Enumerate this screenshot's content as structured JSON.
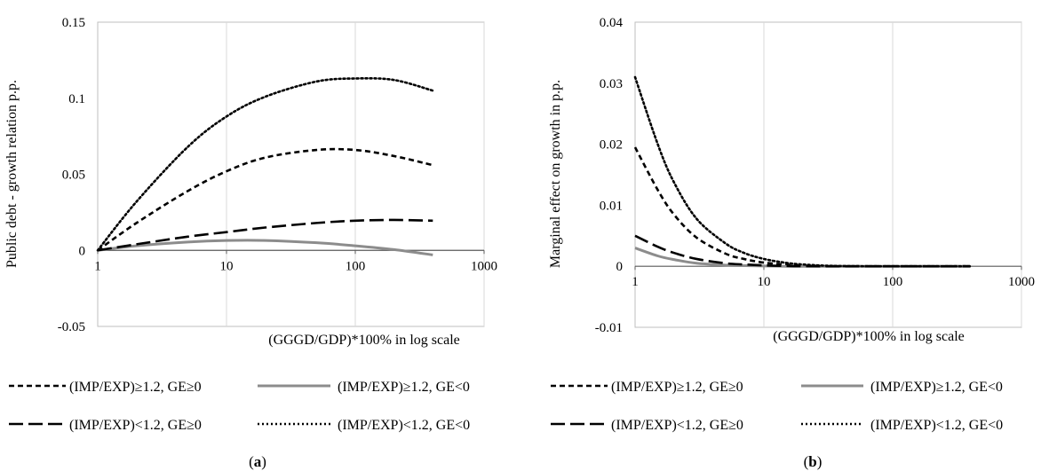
{
  "chart_data": [
    {
      "type": "line",
      "panel_label": "a",
      "xlabel": "(GGGD/GDP)*100% in log scale",
      "ylabel": "Public debt - growth relation p.p.",
      "xscale": "log",
      "xlim": [
        1,
        1000
      ],
      "ylim": [
        -0.05,
        0.15
      ],
      "xticks": [
        "1",
        "10",
        "100",
        "1000"
      ],
      "yticks": [
        "-0.05",
        "0",
        "0.05",
        "0.1",
        "0.15"
      ],
      "grid": "vertical",
      "legend": "bottom",
      "series": [
        {
          "name": "(IMP/EXP)≥1.2, GE≥0",
          "style": "short-dash",
          "color": "#000000",
          "x": [
            1,
            2,
            5,
            10,
            20,
            50,
            100,
            200,
            400
          ],
          "y": [
            0,
            0.018,
            0.039,
            0.052,
            0.061,
            0.066,
            0.066,
            0.062,
            0.056
          ]
        },
        {
          "name": "(IMP/EXP)≥1.2, GE<0",
          "style": "solid",
          "color": "#8c8c8c",
          "x": [
            1,
            2,
            5,
            10,
            20,
            50,
            100,
            200,
            400
          ],
          "y": [
            0,
            0.003,
            0.0055,
            0.0065,
            0.0065,
            0.005,
            0.003,
            0.0005,
            -0.003
          ]
        },
        {
          "name": "(IMP/EXP)<1.2, GE≥0",
          "style": "long-dash",
          "color": "#000000",
          "x": [
            1,
            2,
            5,
            10,
            20,
            50,
            100,
            200,
            400
          ],
          "y": [
            0,
            0.004,
            0.009,
            0.012,
            0.015,
            0.018,
            0.0195,
            0.02,
            0.0195
          ]
        },
        {
          "name": "(IMP/EXP)<1.2, GE<0",
          "style": "dotted",
          "color": "#000000",
          "x": [
            1,
            2,
            5,
            10,
            20,
            50,
            100,
            200,
            400
          ],
          "y": [
            0,
            0.032,
            0.068,
            0.088,
            0.101,
            0.111,
            0.113,
            0.112,
            0.105
          ]
        }
      ]
    },
    {
      "type": "line",
      "panel_label": "b",
      "xlabel": "(GGGD/GDP)*100% in log scale",
      "ylabel": "Marginal effect on growth in p.p.",
      "xscale": "log",
      "xlim": [
        1,
        1000
      ],
      "ylim": [
        -0.01,
        0.04
      ],
      "xticks": [
        "1",
        "10",
        "100",
        "1000"
      ],
      "yticks": [
        "-0.01",
        "0",
        "0.01",
        "0.02",
        "0.03",
        "0.04"
      ],
      "grid": "vertical",
      "legend": "bottom",
      "series": [
        {
          "name": "(IMP/EXP)≥1.2, GE≥0",
          "style": "short-dash",
          "color": "#000000",
          "x": [
            1,
            1.5,
            2,
            3,
            5,
            7,
            10,
            15,
            20,
            30,
            50,
            100,
            200,
            400
          ],
          "y": [
            0.0195,
            0.0125,
            0.0085,
            0.0047,
            0.0021,
            0.0012,
            0.0006,
            0.00025,
            0.0001,
            3e-05,
            0,
            0,
            0,
            0
          ]
        },
        {
          "name": "(IMP/EXP)≥1.2, GE<0",
          "style": "solid",
          "color": "#8c8c8c",
          "x": [
            1,
            1.5,
            2,
            3,
            5,
            7,
            10,
            15,
            20,
            30,
            50,
            100,
            200,
            400
          ],
          "y": [
            0.003,
            0.0017,
            0.0011,
            0.0005,
            0.0002,
            0.0001,
            5e-05,
            0,
            0,
            0,
            0,
            0,
            0,
            0
          ]
        },
        {
          "name": "(IMP/EXP)<1.2, GE≥0",
          "style": "long-dash",
          "color": "#000000",
          "x": [
            1,
            1.5,
            2,
            3,
            5,
            7,
            10,
            15,
            20,
            30,
            50,
            100,
            200,
            400
          ],
          "y": [
            0.005,
            0.0032,
            0.0022,
            0.0012,
            0.0005,
            0.0003,
            0.00015,
            5e-05,
            2e-05,
            0,
            0,
            0,
            0,
            0
          ]
        },
        {
          "name": "(IMP/EXP)<1.2, GE<0",
          "style": "dotted",
          "color": "#000000",
          "x": [
            1,
            1.5,
            2,
            3,
            5,
            7,
            10,
            15,
            20,
            30,
            50,
            100,
            200,
            400
          ],
          "y": [
            0.031,
            0.02,
            0.0138,
            0.0078,
            0.0038,
            0.0022,
            0.0012,
            0.00055,
            0.0003,
            0.0001,
            2e-05,
            0,
            0,
            0
          ]
        }
      ]
    }
  ]
}
